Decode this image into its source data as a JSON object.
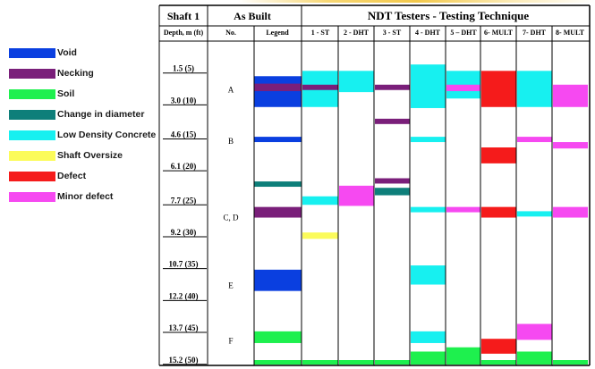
{
  "legend": {
    "items": [
      {
        "key": "void",
        "label": "Void",
        "color": "#0a3fe0"
      },
      {
        "key": "necking",
        "label": "Necking",
        "color": "#7a1f7a"
      },
      {
        "key": "soil",
        "label": "Soil",
        "color": "#1ef04e"
      },
      {
        "key": "change_in_diameter",
        "label": "Change in diameter",
        "color": "#0e7f7a"
      },
      {
        "key": "low_density",
        "label": "Low Density Concrete",
        "color": "#17f0f0"
      },
      {
        "key": "shaft_oversize",
        "label": "Shaft Oversize",
        "color": "#fbfb5a"
      },
      {
        "key": "defect",
        "label": "Defect",
        "color": "#f51b1b"
      },
      {
        "key": "minor_defect",
        "label": "Minor defect",
        "color": "#f649f1"
      }
    ]
  },
  "header": {
    "shaft": "Shaft 1",
    "as_built": "As Built",
    "ndt": "NDT Testers - Testing Technique",
    "depth_col": "Depth, m (ft)",
    "no_col": "No.",
    "legend_col": "Legend"
  },
  "columns": [
    {
      "key": "legend",
      "label": "Legend"
    },
    {
      "key": "t1",
      "label": "1 - ST"
    },
    {
      "key": "t2",
      "label": "2 - DHT"
    },
    {
      "key": "t3",
      "label": "3 - ST"
    },
    {
      "key": "t4",
      "label": "4 - DHT"
    },
    {
      "key": "t5",
      "label": "5 – DHT"
    },
    {
      "key": "t6",
      "label": "6- MULT"
    },
    {
      "key": "t7",
      "label": "7- DHT"
    },
    {
      "key": "t8",
      "label": "8- MULT"
    }
  ],
  "depth_markers": [
    {
      "label": "1.5 (5)",
      "depth_m": 1.5
    },
    {
      "label": "3.0 (10)",
      "depth_m": 3.0
    },
    {
      "label": "4.6 (15)",
      "depth_m": 4.6
    },
    {
      "label": "6.1 (20)",
      "depth_m": 6.1
    },
    {
      "label": "7.7 (25)",
      "depth_m": 7.7
    },
    {
      "label": "9.2 (30)",
      "depth_m": 9.2
    },
    {
      "label": "10.7 (35)",
      "depth_m": 10.7
    },
    {
      "label": "12.2 (40)",
      "depth_m": 12.2
    },
    {
      "label": "13.7 (45)",
      "depth_m": 13.7
    },
    {
      "label": "15.2 (50)",
      "depth_m": 15.2
    }
  ],
  "anomaly_labels": [
    {
      "label": "A",
      "depth_m": 2.3
    },
    {
      "label": "B",
      "depth_m": 4.7
    },
    {
      "label": "C, D",
      "depth_m": 8.3
    },
    {
      "label": "E",
      "depth_m": 11.5
    },
    {
      "label": "F",
      "depth_m": 14.1
    }
  ],
  "chart_data": {
    "type": "table",
    "depth_range_m": [
      0,
      15.2
    ],
    "intervals": [
      {
        "col": "legend",
        "type": "void",
        "from_m": 1.65,
        "to_m": 3.1
      },
      {
        "col": "legend",
        "type": "necking",
        "from_m": 2.0,
        "to_m": 2.35
      },
      {
        "col": "legend",
        "type": "void",
        "from_m": 4.5,
        "to_m": 4.75
      },
      {
        "col": "legend",
        "type": "change_in_diameter",
        "from_m": 6.6,
        "to_m": 6.85
      },
      {
        "col": "legend",
        "type": "necking",
        "from_m": 7.8,
        "to_m": 8.3
      },
      {
        "col": "legend",
        "type": "void",
        "from_m": 10.75,
        "to_m": 11.75
      },
      {
        "col": "legend",
        "type": "soil",
        "from_m": 13.65,
        "to_m": 14.2
      },
      {
        "col": "legend",
        "type": "soil",
        "from_m": 15.0,
        "to_m": 15.3
      },
      {
        "col": "t1",
        "type": "low_density",
        "from_m": 1.4,
        "to_m": 3.1
      },
      {
        "col": "t1",
        "type": "necking",
        "from_m": 2.05,
        "to_m": 2.3
      },
      {
        "col": "t1",
        "type": "low_density",
        "from_m": 7.3,
        "to_m": 7.7
      },
      {
        "col": "t1",
        "type": "shaft_oversize",
        "from_m": 9.0,
        "to_m": 9.3
      },
      {
        "col": "t1",
        "type": "soil",
        "from_m": 15.0,
        "to_m": 15.3
      },
      {
        "col": "t2",
        "type": "low_density",
        "from_m": 1.4,
        "to_m": 2.4
      },
      {
        "col": "t2",
        "type": "minor_defect",
        "from_m": 6.8,
        "to_m": 7.75
      },
      {
        "col": "t2",
        "type": "soil",
        "from_m": 15.0,
        "to_m": 15.3
      },
      {
        "col": "t3",
        "type": "necking",
        "from_m": 2.05,
        "to_m": 2.3
      },
      {
        "col": "t3",
        "type": "necking",
        "from_m": 3.65,
        "to_m": 3.9
      },
      {
        "col": "t3",
        "type": "necking",
        "from_m": 6.45,
        "to_m": 6.7
      },
      {
        "col": "t3",
        "type": "change_in_diameter",
        "from_m": 6.9,
        "to_m": 7.25
      },
      {
        "col": "t3",
        "type": "soil",
        "from_m": 15.0,
        "to_m": 15.3
      },
      {
        "col": "t4",
        "type": "low_density",
        "from_m": 1.1,
        "to_m": 3.15
      },
      {
        "col": "t4",
        "type": "low_density",
        "from_m": 4.5,
        "to_m": 4.75
      },
      {
        "col": "t4",
        "type": "low_density",
        "from_m": 7.8,
        "to_m": 8.05
      },
      {
        "col": "t4",
        "type": "low_density",
        "from_m": 10.55,
        "to_m": 11.45
      },
      {
        "col": "t4",
        "type": "low_density",
        "from_m": 13.65,
        "to_m": 14.2
      },
      {
        "col": "t4",
        "type": "soil",
        "from_m": 14.6,
        "to_m": 15.3
      },
      {
        "col": "t5",
        "type": "low_density",
        "from_m": 1.4,
        "to_m": 2.7
      },
      {
        "col": "t5",
        "type": "minor_defect",
        "from_m": 2.05,
        "to_m": 2.35
      },
      {
        "col": "t5",
        "type": "minor_defect",
        "from_m": 7.8,
        "to_m": 8.05
      },
      {
        "col": "t5",
        "type": "soil",
        "from_m": 14.4,
        "to_m": 15.3
      },
      {
        "col": "t6",
        "type": "defect",
        "from_m": 1.4,
        "to_m": 3.1
      },
      {
        "col": "t6",
        "type": "defect",
        "from_m": 5.0,
        "to_m": 5.75
      },
      {
        "col": "t6",
        "type": "defect",
        "from_m": 7.8,
        "to_m": 8.3
      },
      {
        "col": "t6",
        "type": "defect",
        "from_m": 14.0,
        "to_m": 14.7
      },
      {
        "col": "t6",
        "type": "soil",
        "from_m": 15.0,
        "to_m": 15.3
      },
      {
        "col": "t7",
        "type": "low_density",
        "from_m": 1.4,
        "to_m": 3.1
      },
      {
        "col": "t7",
        "type": "minor_defect",
        "from_m": 4.5,
        "to_m": 4.75
      },
      {
        "col": "t7",
        "type": "low_density",
        "from_m": 8.0,
        "to_m": 8.25
      },
      {
        "col": "t7",
        "type": "minor_defect",
        "from_m": 13.3,
        "to_m": 14.05
      },
      {
        "col": "t7",
        "type": "soil",
        "from_m": 14.6,
        "to_m": 15.3
      },
      {
        "col": "t8",
        "type": "minor_defect",
        "from_m": 2.05,
        "to_m": 3.1
      },
      {
        "col": "t8",
        "type": "minor_defect",
        "from_m": 4.75,
        "to_m": 5.05
      },
      {
        "col": "t8",
        "type": "minor_defect",
        "from_m": 7.8,
        "to_m": 8.3
      },
      {
        "col": "t8",
        "type": "soil",
        "from_m": 15.0,
        "to_m": 15.3
      }
    ]
  }
}
